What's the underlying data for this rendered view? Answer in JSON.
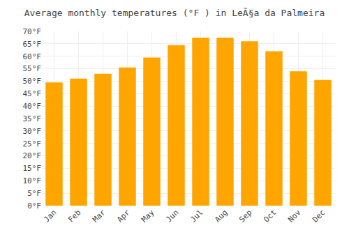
{
  "chart_data": {
    "type": "bar",
    "title": "Average monthly temperatures (°F ) in LeÃ§a da Palmeira",
    "categories": [
      "Jan",
      "Feb",
      "Mar",
      "Apr",
      "May",
      "Jun",
      "Jul",
      "Aug",
      "Sep",
      "Oct",
      "Nov",
      "Dec"
    ],
    "values": [
      49.5,
      51.0,
      53.0,
      55.5,
      59.5,
      64.5,
      67.5,
      67.5,
      66.0,
      62.0,
      54.0,
      50.5
    ],
    "color": "#FFA500",
    "ylim": [
      0,
      70
    ],
    "yticks": [
      {
        "value": 0,
        "label": "0°F"
      },
      {
        "value": 5,
        "label": "5°F"
      },
      {
        "value": 10,
        "label": "10°F"
      },
      {
        "value": 15,
        "label": "15°F"
      },
      {
        "value": 20,
        "label": "20°F"
      },
      {
        "value": 25,
        "label": "25°F"
      },
      {
        "value": 30,
        "label": "30°F"
      },
      {
        "value": 35,
        "label": "35°F"
      },
      {
        "value": 40,
        "label": "40°F"
      },
      {
        "value": 45,
        "label": "45°F"
      },
      {
        "value": 50,
        "label": "50°F"
      },
      {
        "value": 55,
        "label": "55°F"
      },
      {
        "value": 60,
        "label": "60°F"
      },
      {
        "value": 65,
        "label": "65°F"
      },
      {
        "value": 70,
        "label": "70°F"
      }
    ],
    "grid": true
  }
}
